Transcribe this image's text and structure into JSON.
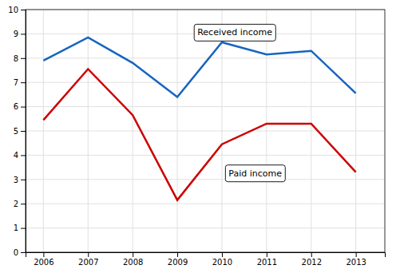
{
  "chart_data": {
    "type": "line",
    "x": [
      2006,
      2007,
      2008,
      2009,
      2010,
      2011,
      2012,
      2013
    ],
    "series": [
      {
        "color": "#1565C0",
        "values": [
          7.9,
          8.85,
          7.8,
          6.4,
          8.65,
          8.15,
          8.3,
          6.55
        ]
      },
      {
        "color": "#CC0000",
        "values": [
          5.45,
          7.55,
          5.65,
          2.15,
          4.45,
          5.3,
          5.3,
          3.3
        ]
      }
    ],
    "xlim": [
      2005.6,
      2013.65
    ],
    "xticks": [
      2006,
      2007,
      2008,
      2009,
      2010,
      2011,
      2012,
      2013
    ],
    "ylim": [
      0,
      10
    ],
    "yticks": [
      0,
      1,
      2,
      3,
      4,
      5,
      6,
      7,
      8,
      9,
      10
    ],
    "grid": true,
    "annotations": [
      {
        "text": "Received income",
        "x": 2009.45,
        "y": 9.05
      },
      {
        "text": "Paid income",
        "x": 2010.15,
        "y": 3.25
      }
    ]
  }
}
